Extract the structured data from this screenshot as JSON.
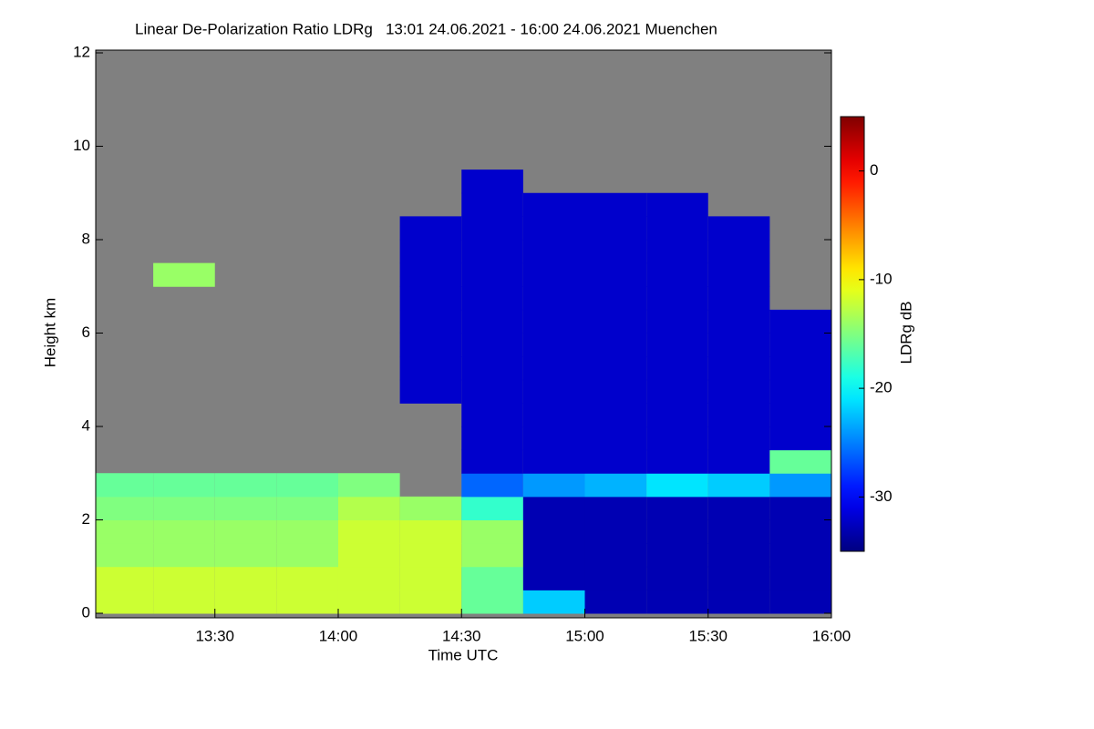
{
  "chart_data": {
    "type": "heatmap",
    "title": "Linear De-Polarization Ratio LDRg   13:01 24.06.2021 - 16:00 24.06.2021 Muenchen",
    "x_label": "Time UTC",
    "y_label": "Height km",
    "colorbar_label": "LDRg dB",
    "x": [
      13.125,
      13.375,
      13.625,
      13.875,
      14.125,
      14.375,
      14.625,
      14.875,
      15.125,
      15.375,
      15.625,
      15.875
    ],
    "y": [
      0.25,
      0.75,
      1.25,
      1.75,
      2.25,
      2.75,
      3.25,
      3.75,
      4.25,
      4.75,
      5.25,
      5.75,
      6.25,
      6.75,
      7.25,
      7.75,
      8.25,
      8.75,
      9.25,
      9.75,
      10.25,
      10.75,
      11.25,
      11.75
    ],
    "values": [
      [
        -12,
        -12,
        -12,
        -12,
        -12,
        -12,
        -16,
        -22,
        -33,
        -33,
        -33,
        -33
      ],
      [
        -12,
        -12,
        -12,
        -12,
        -12,
        -12,
        -16,
        -33,
        -33,
        -33,
        -33,
        -33
      ],
      [
        -14,
        -14,
        -14,
        -14,
        -12,
        -12,
        -14,
        -33,
        -33,
        -33,
        -33,
        -33
      ],
      [
        -14,
        -14,
        -14,
        -14,
        -12,
        -12,
        -14,
        -33,
        -33,
        -33,
        -33,
        -33
      ],
      [
        -15,
        -15,
        -15,
        -15,
        -13,
        -14,
        -18,
        -33,
        -33,
        -33,
        -33,
        -33
      ],
      [
        -16,
        -16,
        -16,
        -16,
        -15,
        null,
        -26,
        -24,
        -23,
        -21,
        -22,
        -24
      ],
      [
        null,
        null,
        null,
        null,
        null,
        null,
        -32,
        -32,
        -32,
        -32,
        -32,
        -16
      ],
      [
        null,
        null,
        null,
        null,
        null,
        null,
        -32,
        -32,
        -32,
        -32,
        -32,
        -32
      ],
      [
        null,
        null,
        null,
        null,
        null,
        null,
        -32,
        -32,
        -32,
        -32,
        -32,
        -32
      ],
      [
        null,
        null,
        null,
        null,
        null,
        -32,
        -32,
        -32,
        -32,
        -32,
        -32,
        -32
      ],
      [
        null,
        null,
        null,
        null,
        null,
        -32,
        -32,
        -32,
        -32,
        -32,
        -32,
        -32
      ],
      [
        null,
        null,
        null,
        null,
        null,
        -32,
        -32,
        -32,
        -32,
        -32,
        -32,
        -32
      ],
      [
        null,
        null,
        null,
        null,
        null,
        -32,
        -32,
        -32,
        -32,
        -32,
        -32,
        -32
      ],
      [
        null,
        null,
        null,
        null,
        null,
        -32,
        -32,
        -32,
        -32,
        -32,
        -32,
        null
      ],
      [
        null,
        -14,
        null,
        null,
        null,
        -32,
        -32,
        -32,
        -32,
        -32,
        -32,
        null
      ],
      [
        null,
        null,
        null,
        null,
        null,
        -32,
        -32,
        -32,
        -32,
        -32,
        -32,
        null
      ],
      [
        null,
        null,
        null,
        null,
        null,
        -32,
        -32,
        -32,
        -32,
        -32,
        -32,
        null
      ],
      [
        null,
        null,
        null,
        null,
        null,
        null,
        -32,
        -32,
        -32,
        -32,
        null,
        null
      ],
      [
        null,
        null,
        null,
        null,
        null,
        null,
        -32,
        null,
        null,
        null,
        null,
        null
      ],
      [
        null,
        null,
        null,
        null,
        null,
        null,
        null,
        null,
        null,
        null,
        null,
        null
      ],
      [
        null,
        null,
        null,
        null,
        null,
        null,
        null,
        null,
        null,
        null,
        null,
        null
      ],
      [
        null,
        null,
        null,
        null,
        null,
        null,
        null,
        null,
        null,
        null,
        null,
        null
      ],
      [
        null,
        null,
        null,
        null,
        null,
        null,
        null,
        null,
        null,
        null,
        null,
        null
      ],
      [
        null,
        null,
        null,
        null,
        null,
        null,
        null,
        null,
        null,
        null,
        null,
        null
      ]
    ],
    "xlim": [
      13.0167,
      16.0
    ],
    "xticks": [
      {
        "value": 13.5,
        "label": "13:30"
      },
      {
        "value": 14,
        "label": "14:00"
      },
      {
        "value": 14.5,
        "label": "14:30"
      },
      {
        "value": 15,
        "label": "15:00"
      },
      {
        "value": 15.5,
        "label": "15:30"
      },
      {
        "value": 16,
        "label": "16:00"
      }
    ],
    "ylim": [
      0,
      12
    ],
    "yticks": [
      0,
      2,
      4,
      6,
      8,
      10,
      12
    ],
    "zlim": [
      -35,
      5
    ],
    "zticks": [
      0,
      -10,
      -20,
      -30
    ],
    "colormap": "jet",
    "missing_color": "#808080"
  }
}
